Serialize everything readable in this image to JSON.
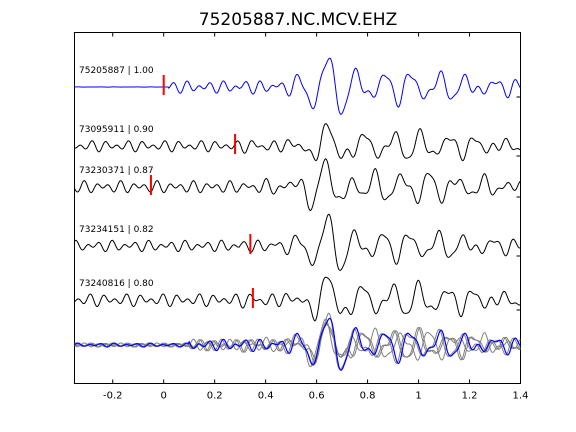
{
  "chart_data": {
    "type": "line",
    "title": "75205887.NC.MCV.EHZ",
    "xlabel": "",
    "ylabel": "",
    "xlim": [
      -0.35,
      1.4
    ],
    "x_ticks": [
      -0.2,
      0,
      0.2,
      0.4,
      0.6,
      0.8,
      1,
      1.2,
      1.4
    ],
    "x_tick_labels": [
      "-0.2",
      "0",
      "0.2",
      "0.4",
      "0.6",
      "0.8",
      "1",
      "1.2",
      "1.4"
    ],
    "grid": false,
    "series": [
      {
        "name": "75205887 | 1.00",
        "color": "#0000ff",
        "pick_time": 0.0,
        "pick_color": "#ff0000",
        "seed": 3
      },
      {
        "name": "73095911 | 0.90",
        "color": "#000000",
        "pick_time": 0.28,
        "pick_color": "#ff0000",
        "seed": 11
      },
      {
        "name": "73230371 | 0.87",
        "color": "#000000",
        "pick_time": -0.05,
        "pick_color": "#ff0000",
        "seed": 19
      },
      {
        "name": "73234151 | 0.82",
        "color": "#000000",
        "pick_time": 0.34,
        "pick_color": "#ff0000",
        "seed": 27
      },
      {
        "name": "73240816 | 0.80",
        "color": "#000000",
        "pick_time": 0.35,
        "pick_color": "#ff0000",
        "seed": 35
      }
    ],
    "stack": {
      "reference_color": "#0000ff",
      "overlay_color": "#808080"
    }
  }
}
